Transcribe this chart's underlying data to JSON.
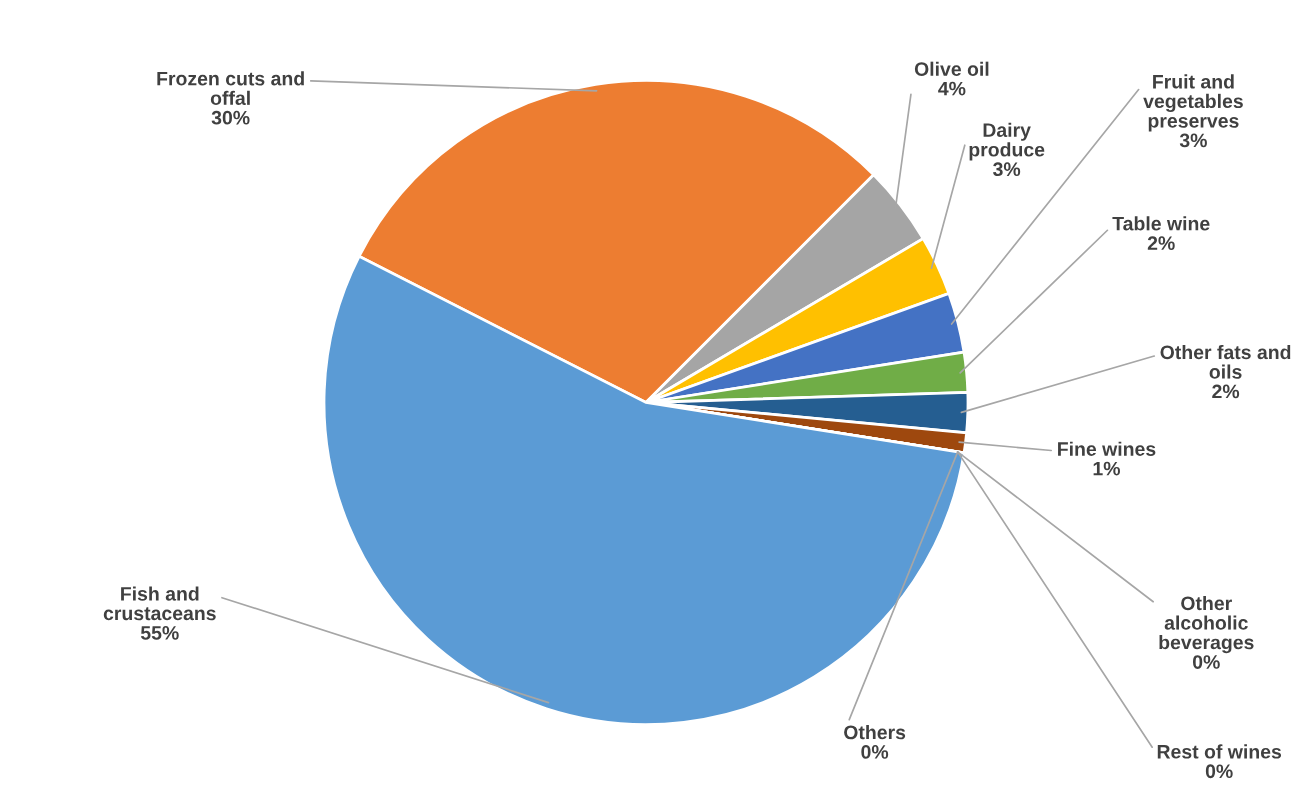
{
  "chart_data": {
    "type": "pie",
    "categories": [
      "Frozen cuts and\noffal",
      "Olive oil",
      "Dairy\nproduce",
      "Fruit and\nvegetables\npreserves",
      "Table wine",
      "Other fats and\noils",
      "Fine wines",
      "Other\nalcoholic\nbeverages",
      "Rest of wines",
      "Others",
      "Fish and\ncrustaceans"
    ],
    "values": [
      30,
      4,
      3,
      3,
      2,
      2,
      1,
      0,
      0,
      0,
      55
    ],
    "value_labels": [
      "30%",
      "4%",
      "3%",
      "3%",
      "2%",
      "2%",
      "1%",
      "0%",
      "0%",
      "0%",
      "55%"
    ],
    "colors": [
      "#ed7d31",
      "#a5a5a5",
      "#ffc000",
      "#4472c4",
      "#70ad47",
      "#255e91",
      "#9e480e",
      "#636363",
      "#997300",
      "#264478",
      "#5b9bd5"
    ]
  }
}
